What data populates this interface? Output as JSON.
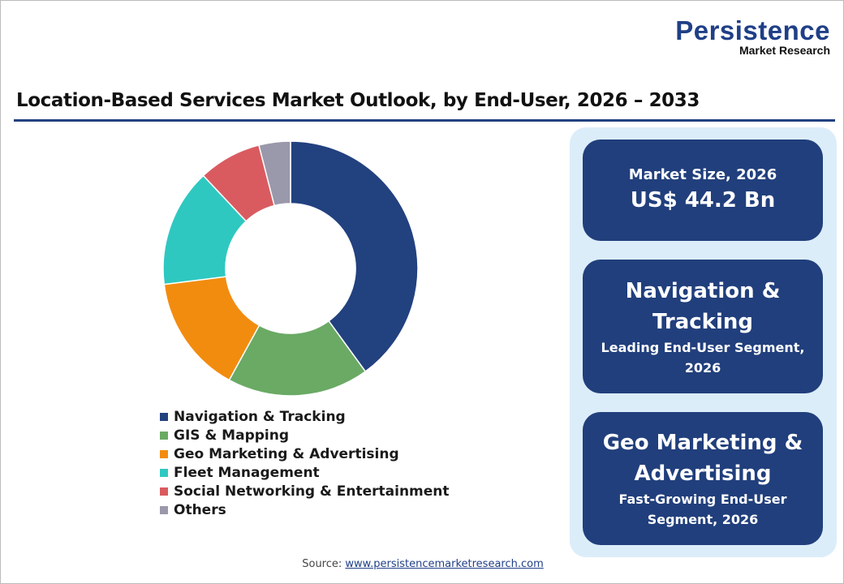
{
  "logo": {
    "line1": "Persistence",
    "line2": "Market Research"
  },
  "title": "Location-Based Services Market Outlook, by End-User, 2026 – 2033",
  "cards": [
    {
      "big": "US$ 44.2 Bn",
      "small_top": "Market Size, 2026"
    },
    {
      "big": "Navigation & Tracking",
      "small": "Leading End-User Segment, 2026"
    },
    {
      "big": "Geo Marketing & Advertising",
      "small": "Fast-Growing End-User Segment, 2026"
    }
  ],
  "source": {
    "label": "Source: ",
    "link": "www.persistencemarketresearch.com"
  },
  "chart_data": {
    "type": "pie",
    "donut": true,
    "categories": [
      "Navigation & Tracking",
      "GIS & Mapping",
      "Geo Marketing & Advertising",
      "Fleet Management",
      "Social Networking & Entertainment",
      "Others"
    ],
    "values": [
      40,
      18,
      15,
      15,
      8,
      4
    ],
    "colors": [
      "#22417f",
      "#6aaa64",
      "#f28c0f",
      "#2ec8c0",
      "#d95b60",
      "#9a98ab"
    ],
    "legend_position": "bottom"
  }
}
